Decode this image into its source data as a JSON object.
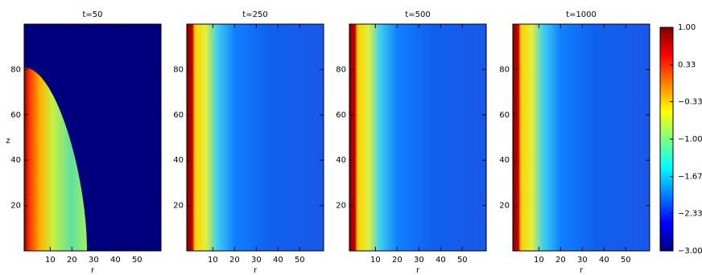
{
  "chart_data": [
    {
      "type": "heatmap",
      "title": "t=50",
      "xlabel": "r",
      "ylabel": "z",
      "xlim": [
        -2,
        61
      ],
      "ylim": [
        0,
        100
      ],
      "xticks": [
        10,
        20,
        30,
        40,
        50
      ],
      "yticks": [
        20,
        40,
        60,
        80
      ]
    },
    {
      "type": "heatmap",
      "title": "t=250",
      "xlabel": "r",
      "xlim": [
        -2,
        61
      ],
      "ylim": [
        0,
        100
      ],
      "xticks": [
        10,
        20,
        30,
        40,
        50
      ],
      "yticks": [
        20,
        40,
        60,
        80
      ]
    },
    {
      "type": "heatmap",
      "title": "t=500",
      "xlabel": "r",
      "xlim": [
        -2,
        61
      ],
      "ylim": [
        0,
        100
      ],
      "xticks": [
        10,
        20,
        30,
        40,
        50
      ],
      "yticks": [
        20,
        40,
        60,
        80
      ]
    },
    {
      "type": "heatmap",
      "title": "t=1000",
      "xlabel": "r",
      "xlim": [
        -2,
        61
      ],
      "ylim": [
        0,
        100
      ],
      "xticks": [
        10,
        20,
        30,
        40,
        50
      ],
      "yticks": [
        20,
        40,
        60,
        80
      ]
    }
  ],
  "colorbar": {
    "clim": [
      -3,
      1
    ],
    "colors": [
      "#00007f",
      "#0000ff",
      "#0080ff",
      "#00ffff",
      "#80ff80",
      "#ffff00",
      "#ff8000",
      "#ff0000",
      "#7f0000"
    ],
    "ticks": [
      {
        "value": 1,
        "label": "1.00"
      },
      {
        "value": 0.33,
        "label": "0.33"
      },
      {
        "value": -0.33,
        "label": "−0.33"
      },
      {
        "value": -1,
        "label": "−1.00"
      },
      {
        "value": -1.67,
        "label": "−1.67"
      },
      {
        "value": -2.33,
        "label": "−2.33"
      },
      {
        "value": -3,
        "label": "−3.00"
      }
    ]
  }
}
